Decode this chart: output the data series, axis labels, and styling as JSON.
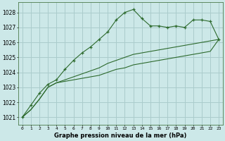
{
  "title": "Graphe pression niveau de la mer (hPa)",
  "background_color": "#cce8e8",
  "grid_color": "#aacccc",
  "line_color": "#2d6a2d",
  "x_ticks": [
    0,
    1,
    2,
    3,
    4,
    5,
    6,
    7,
    8,
    9,
    10,
    11,
    12,
    13,
    14,
    15,
    16,
    17,
    18,
    19,
    20,
    21,
    22,
    23
  ],
  "ylim": [
    1020.5,
    1028.7
  ],
  "yticks": [
    1021,
    1022,
    1023,
    1024,
    1025,
    1026,
    1027,
    1028
  ],
  "series": {
    "main": [
      1021.0,
      1021.8,
      1022.6,
      1023.2,
      1023.5,
      1024.2,
      1024.8,
      1025.3,
      1025.7,
      1026.2,
      1026.7,
      1027.5,
      1028.0,
      1028.2,
      1027.6,
      1027.1,
      1027.1,
      1027.0,
      1027.1,
      1027.0,
      1027.5,
      1027.5,
      1027.4,
      1026.2
    ],
    "line2": [
      1021.0,
      1021.5,
      1022.2,
      1023.0,
      1023.3,
      1023.5,
      1023.7,
      1023.9,
      1024.1,
      1024.3,
      1024.6,
      1024.8,
      1025.0,
      1025.2,
      1025.3,
      1025.4,
      1025.5,
      1025.6,
      1025.7,
      1025.8,
      1025.9,
      1026.0,
      1026.1,
      1026.2
    ],
    "line3": [
      1021.0,
      1021.5,
      1022.2,
      1023.0,
      1023.3,
      1023.4,
      1023.5,
      1023.6,
      1023.7,
      1023.8,
      1024.0,
      1024.2,
      1024.3,
      1024.5,
      1024.6,
      1024.7,
      1024.8,
      1024.9,
      1025.0,
      1025.1,
      1025.2,
      1025.3,
      1025.4,
      1026.2
    ]
  }
}
